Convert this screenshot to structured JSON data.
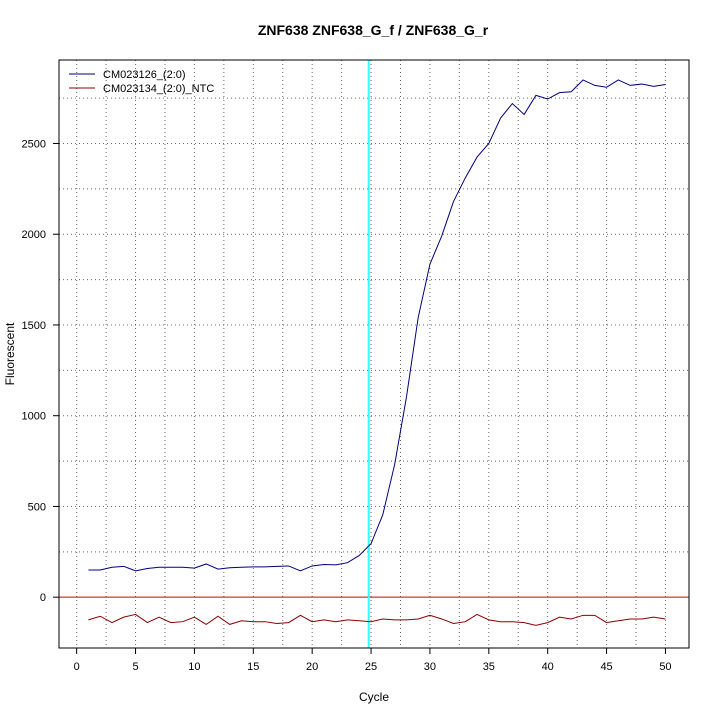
{
  "chart_data": {
    "type": "line",
    "title": "ZNF638  ZNF638_G_f / ZNF638_G_r",
    "xlabel": "Cycle",
    "ylabel": "Fluorescent",
    "xlim": [
      -1.5,
      52
    ],
    "ylim": [
      -280,
      2960
    ],
    "x_ticks": [
      0,
      5,
      10,
      15,
      20,
      25,
      30,
      35,
      40,
      45,
      50
    ],
    "y_ticks": [
      0,
      500,
      1000,
      1500,
      2000,
      2500
    ],
    "grid": true,
    "legend_position": "top-left",
    "threshold_y": 0,
    "threshold_color": "#cc0000",
    "ct_x": 24.8,
    "ct_color": "#33ffff",
    "x": [
      1,
      2,
      3,
      4,
      5,
      6,
      7,
      8,
      9,
      10,
      11,
      12,
      13,
      14,
      15,
      16,
      17,
      18,
      19,
      20,
      21,
      22,
      23,
      24,
      25,
      26,
      27,
      28,
      29,
      30,
      31,
      32,
      33,
      34,
      35,
      36,
      37,
      38,
      39,
      40,
      41,
      42,
      43,
      44,
      45,
      46,
      47,
      48,
      49,
      50
    ],
    "series": [
      {
        "name": "CM023126_(2:0)",
        "color": "#000080",
        "values": [
          150,
          150,
          165,
          170,
          145,
          158,
          165,
          165,
          165,
          160,
          183,
          155,
          162,
          165,
          167,
          167,
          170,
          172,
          145,
          172,
          180,
          178,
          190,
          230,
          295,
          455,
          730,
          1100,
          1540,
          1835,
          1990,
          2180,
          2310,
          2425,
          2500,
          2640,
          2720,
          2660,
          2765,
          2745,
          2780,
          2785,
          2850,
          2820,
          2810,
          2850,
          2820,
          2828,
          2815,
          2825
        ]
      },
      {
        "name": "CM023134_(2:0)_NTC",
        "color": "#8b0000",
        "values": [
          -125,
          -105,
          -140,
          -110,
          -95,
          -140,
          -110,
          -140,
          -135,
          -110,
          -150,
          -105,
          -150,
          -130,
          -135,
          -135,
          -145,
          -140,
          -100,
          -135,
          -125,
          -135,
          -125,
          -130,
          -135,
          -120,
          -125,
          -125,
          -120,
          -100,
          -120,
          -145,
          -135,
          -95,
          -125,
          -135,
          -135,
          -140,
          -155,
          -140,
          -110,
          -120,
          -100,
          -100,
          -140,
          -130,
          -120,
          -120,
          -110,
          -120
        ]
      }
    ]
  }
}
